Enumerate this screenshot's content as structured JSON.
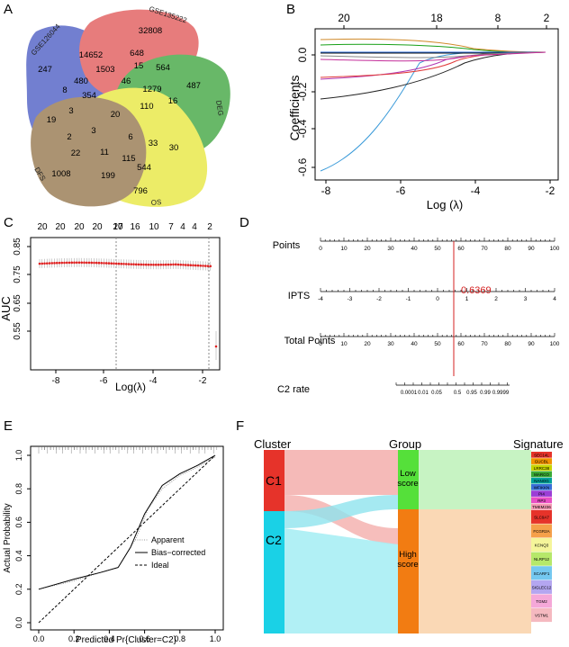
{
  "panels": {
    "a": "A",
    "b": "B",
    "c": "C",
    "d": "D",
    "e": "E",
    "f": "F"
  },
  "venn": {
    "sets": [
      {
        "name": "GSE126044",
        "color": "#3d4fbf"
      },
      {
        "name": "GSE135222",
        "color": "#de4a4a"
      },
      {
        "name": "DEG",
        "color": "#2f9e2f"
      },
      {
        "name": "OS",
        "color": "#e5e52e"
      },
      {
        "name": "DFS",
        "color": "#8c6a3c"
      }
    ],
    "regions": [
      "32808",
      "247",
      "14652",
      "648",
      "564",
      "1503",
      "15",
      "487",
      "480",
      "46",
      "8",
      "1279",
      "354",
      "16",
      "20",
      "110",
      "3",
      "19",
      "3",
      "6",
      "2",
      "22",
      "11",
      "33",
      "30",
      "115",
      "544",
      "1008",
      "199",
      "796"
    ]
  },
  "lasso": {
    "top_ticks": [
      "20",
      "18",
      "8",
      "2"
    ],
    "x_ticks": [
      "-8",
      "-6",
      "-4",
      "-2"
    ],
    "y_ticks": [
      "0.0",
      "-0.2",
      "-0.4",
      "-0.6"
    ],
    "xlabel": "Log (λ)",
    "ylabel": "Coefficients"
  },
  "cv": {
    "top_ticks": [
      "20",
      "20",
      "20",
      "20",
      "20",
      "17",
      "16",
      "10",
      "7",
      "4",
      "4",
      "2"
    ],
    "x_ticks": [
      "-8",
      "-6",
      "-4",
      "-2"
    ],
    "y_ticks": [
      "0.85",
      "0.75",
      "0.65",
      "0.55"
    ],
    "xlabel": "Log(λ)",
    "ylabel": "AUC"
  },
  "nomogram": {
    "rows": [
      {
        "label": "Points",
        "ticks": [
          "0",
          "10",
          "20",
          "30",
          "40",
          "50",
          "60",
          "70",
          "80",
          "90",
          "100"
        ]
      },
      {
        "label": "IPTS",
        "ticks": [
          "-4",
          "-3",
          "-2",
          "-1",
          "0",
          "1",
          "2",
          "3",
          "4"
        ]
      },
      {
        "label": "Total Points",
        "ticks": [
          "0",
          "10",
          "20",
          "30",
          "40",
          "50",
          "60",
          "70",
          "80",
          "90",
          "100"
        ]
      },
      {
        "label": "C2 rate",
        "ticks": [
          "0.0001",
          "0.01",
          "0.05",
          "0.5",
          "0.95",
          "0.99",
          "0.9999"
        ]
      }
    ],
    "value": "0.6369"
  },
  "calibration": {
    "x_ticks": [
      "0.0",
      "0.2",
      "0.4",
      "0.6",
      "0.8",
      "1.0"
    ],
    "y_ticks": [
      "0.0",
      "0.2",
      "0.4",
      "0.6",
      "0.8",
      "1.0"
    ],
    "xlabel": "Predicted Pr{Cluster=C2}",
    "ylabel": "Actual Probability",
    "legend": [
      "Apparent",
      "Bias−corrected",
      "Ideal"
    ]
  },
  "sankey": {
    "headers": [
      "Cluster",
      "Group",
      "Signature"
    ],
    "clusters": [
      "C1",
      "C2"
    ],
    "groups_low": [
      "Low",
      "score"
    ],
    "groups_high": [
      "High",
      "score"
    ],
    "signatures": [
      {
        "name": "SEC14L",
        "color": "#e6332a"
      },
      {
        "name": "GUCBL",
        "color": "#f39200"
      },
      {
        "name": "LRRC38",
        "color": "#c8d400"
      },
      {
        "name": "MARCO",
        "color": "#3aaa35"
      },
      {
        "name": "NANOG",
        "color": "#00a19a"
      },
      {
        "name": "WFIKKN",
        "color": "#3a6fd8"
      },
      {
        "name": "PI4",
        "color": "#9b3ed6"
      },
      {
        "name": "RP3",
        "color": "#e84fc5"
      },
      {
        "name": "TMEM236",
        "color": "#f59ab5"
      },
      {
        "name": "SLC9A7",
        "color": "#e6332a"
      },
      {
        "name": "FCGR2A",
        "color": "#f5a04a"
      },
      {
        "name": "KCNQ3",
        "color": "#f5f59a"
      },
      {
        "name": "NLRP12",
        "color": "#b6e86a"
      },
      {
        "name": "SCARF1",
        "color": "#74c8f0"
      },
      {
        "name": "SIGLEC12",
        "color": "#b4a6f0"
      },
      {
        "name": "TGM2",
        "color": "#f5a8d8"
      },
      {
        "name": "VSTM1",
        "color": "#f5b9c0"
      }
    ]
  }
}
